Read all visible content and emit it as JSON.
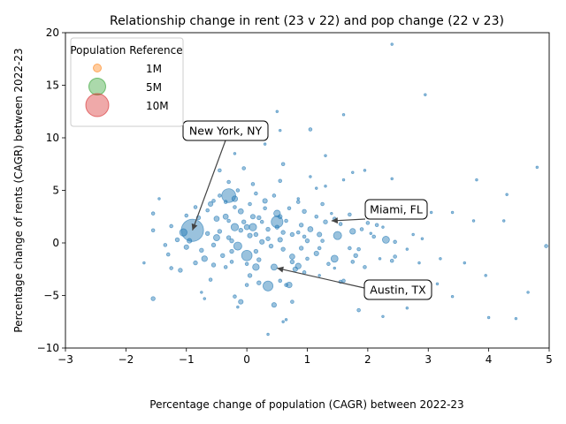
{
  "chart_data": {
    "type": "scatter",
    "title": "Relationship change in rent (23 v 22) and pop change (22 v 23)",
    "xlabel": "Percentage change of population (CAGR) between 2022-23",
    "ylabel": "Percentage change of rents (CAGR) between 2022-23",
    "xlim": [
      -3,
      5
    ],
    "ylim": [
      -10,
      20
    ],
    "xticks": [
      "-3",
      "-2",
      "-1",
      "0",
      "1",
      "2",
      "3",
      "4",
      "5"
    ],
    "yticks": [
      "-10",
      "-5",
      "0",
      "5",
      "10",
      "15",
      "20"
    ],
    "grid": false,
    "point_color": "#1f77b4",
    "legend": {
      "title": "Population Reference",
      "placement": "top-left",
      "entries": [
        {
          "label": "1M",
          "population_m": 1,
          "color": "#ff7f0e"
        },
        {
          "label": "5M",
          "population_m": 5,
          "color": "#2ca02c"
        },
        {
          "label": "10M",
          "population_m": 10,
          "color": "#d62728"
        }
      ]
    },
    "annotations": [
      {
        "label": "New York, NY",
        "x": -0.9,
        "y": 1.2
      },
      {
        "label": "Miami, FL",
        "x": 1.4,
        "y": 2.1
      },
      {
        "label": "Austin, TX",
        "x": 0.5,
        "y": -2.4
      }
    ],
    "series": [
      {
        "points": [
          [
            -0.9,
            1.2,
            9.0
          ],
          [
            -0.3,
            4.5,
            3.5
          ],
          [
            0.35,
            -4.1,
            1.8
          ],
          [
            0.5,
            2.0,
            2.5
          ],
          [
            0.0,
            -1.2,
            2.0
          ],
          [
            -0.15,
            -0.3,
            1.2
          ],
          [
            1.5,
            0.7,
            1.2
          ],
          [
            2.3,
            0.3,
            0.9
          ],
          [
            1.45,
            -1.5,
            0.9
          ],
          [
            -1.05,
            1.0,
            1.0
          ],
          [
            -0.2,
            1.5,
            1.0
          ],
          [
            0.1,
            1.5,
            1.0
          ],
          [
            0.5,
            2.8,
            0.8
          ],
          [
            0.15,
            -2.3,
            0.8
          ],
          [
            0.7,
            -4.0,
            0.6
          ],
          [
            -0.5,
            0.5,
            0.7
          ],
          [
            -0.7,
            -1.5,
            0.6
          ],
          [
            0.85,
            -2.2,
            0.6
          ],
          [
            0.45,
            -2.3,
            0.7
          ],
          [
            -0.2,
            4.2,
            0.6
          ],
          [
            1.75,
            1.1,
            0.6
          ],
          [
            -0.6,
            3.7,
            0.4
          ],
          [
            0.0,
            1.5,
            0.5
          ],
          [
            -0.35,
            2.5,
            0.5
          ],
          [
            0.3,
            4.0,
            0.4
          ],
          [
            0.45,
            -5.9,
            0.4
          ],
          [
            -0.1,
            -5.6,
            0.4
          ],
          [
            0.8,
            -2.5,
            0.4
          ],
          [
            0.75,
            -1.3,
            0.5
          ],
          [
            1.05,
            1.3,
            0.5
          ],
          [
            -1.55,
            -5.3,
            0.3
          ],
          [
            -0.6,
            -3.5,
            0.2
          ],
          [
            -0.5,
            2.3,
            0.5
          ],
          [
            -0.1,
            3.0,
            0.5
          ],
          [
            0.1,
            2.5,
            0.4
          ],
          [
            0.55,
            0.3,
            0.4
          ],
          [
            1.15,
            -1.0,
            0.4
          ],
          [
            0.95,
            3.0,
            0.3
          ],
          [
            1.2,
            0.8,
            0.4
          ],
          [
            1.3,
            2.0,
            0.3
          ],
          [
            -0.8,
            2.4,
            0.3
          ],
          [
            -0.45,
            1.1,
            0.3
          ],
          [
            -0.25,
            -0.8,
            0.3
          ],
          [
            0.2,
            -1.6,
            0.3
          ],
          [
            0.6,
            -0.6,
            0.3
          ],
          [
            1.0,
            0.2,
            0.3
          ],
          [
            1.8,
            -1.2,
            0.3
          ],
          [
            1.85,
            -6.4,
            0.2
          ],
          [
            2.4,
            -1.7,
            0.2
          ],
          [
            2.0,
            1.9,
            0.2
          ],
          [
            2.25,
            -7.0,
            0.1
          ],
          [
            2.65,
            -6.2,
            0.1
          ],
          [
            1.55,
            -3.7,
            0.2
          ],
          [
            1.95,
            -2.3,
            0.2
          ],
          [
            2.1,
            -4.7,
            0.1
          ],
          [
            0.6,
            7.5,
            0.2
          ],
          [
            0.55,
            5.9,
            0.2
          ],
          [
            1.05,
            10.8,
            0.2
          ],
          [
            2.95,
            14.1,
            0.1
          ],
          [
            2.4,
            18.9,
            0.1
          ],
          [
            1.3,
            8.3,
            0.1
          ],
          [
            2.4,
            6.1,
            0.1
          ],
          [
            1.05,
            6.3,
            0.1
          ],
          [
            1.75,
            6.7,
            0.1
          ],
          [
            1.95,
            6.9,
            0.1
          ],
          [
            1.3,
            5.4,
            0.1
          ],
          [
            0.5,
            12.5,
            0.1
          ],
          [
            0.55,
            10.7,
            0.1
          ],
          [
            0.3,
            9.4,
            0.1
          ],
          [
            -0.2,
            8.5,
            0.1
          ],
          [
            -0.05,
            7.1,
            0.2
          ],
          [
            -0.45,
            6.9,
            0.2
          ],
          [
            -0.3,
            5.8,
            0.2
          ],
          [
            0.1,
            5.6,
            0.2
          ],
          [
            -1.45,
            4.2,
            0.1
          ],
          [
            -1.55,
            2.8,
            0.2
          ],
          [
            -1.55,
            1.2,
            0.2
          ],
          [
            -1.35,
            -0.2,
            0.2
          ],
          [
            -1.25,
            1.6,
            0.2
          ],
          [
            -1.15,
            0.3,
            0.3
          ],
          [
            -1.0,
            -0.4,
            0.4
          ],
          [
            -1.1,
            -2.6,
            0.3
          ],
          [
            -0.85,
            -1.9,
            0.3
          ],
          [
            -1.25,
            -2.4,
            0.2
          ],
          [
            -1.7,
            -1.9,
            0.1
          ],
          [
            -0.75,
            -4.7,
            0.1
          ],
          [
            -0.7,
            -5.3,
            0.1
          ],
          [
            -0.2,
            -5.1,
            0.2
          ],
          [
            -0.15,
            -6.1,
            0.1
          ],
          [
            0.35,
            -8.7,
            0.1
          ],
          [
            0.65,
            -7.3,
            0.1
          ],
          [
            0.6,
            -7.5,
            0.1
          ],
          [
            0.75,
            -5.6,
            0.2
          ],
          [
            0.65,
            -4.0,
            0.2
          ],
          [
            0.95,
            -2.8,
            0.2
          ],
          [
            1.2,
            -3.1,
            0.1
          ],
          [
            1.6,
            -3.6,
            0.2
          ],
          [
            1.45,
            -2.4,
            0.1
          ],
          [
            0.75,
            0.8,
            0.3
          ],
          [
            0.9,
            1.7,
            0.3
          ],
          [
            0.25,
            0.1,
            0.4
          ],
          [
            0.05,
            0.7,
            0.4
          ],
          [
            -0.05,
            2.0,
            0.3
          ],
          [
            -0.3,
            0.5,
            0.3
          ],
          [
            0.35,
            1.3,
            0.3
          ],
          [
            0.4,
            -0.3,
            0.3
          ],
          [
            0.15,
            -0.8,
            0.3
          ],
          [
            -0.4,
            -1.2,
            0.3
          ],
          [
            -0.55,
            -0.2,
            0.3
          ],
          [
            0.65,
            2.1,
            0.2
          ],
          [
            0.85,
            1.0,
            0.2
          ],
          [
            1.15,
            2.5,
            0.2
          ],
          [
            1.55,
            1.8,
            0.2
          ],
          [
            1.7,
            2.7,
            0.2
          ],
          [
            1.85,
            -0.6,
            0.2
          ],
          [
            2.05,
            0.9,
            0.1
          ],
          [
            2.15,
            1.7,
            0.2
          ],
          [
            2.45,
            -1.3,
            0.2
          ],
          [
            2.75,
            0.8,
            0.1
          ],
          [
            2.9,
            0.4,
            0.1
          ],
          [
            2.85,
            -1.9,
            0.1
          ],
          [
            3.05,
            2.9,
            0.1
          ],
          [
            3.15,
            -3.9,
            0.1
          ],
          [
            3.2,
            -1.5,
            0.1
          ],
          [
            3.6,
            -1.9,
            0.1
          ],
          [
            3.75,
            2.1,
            0.1
          ],
          [
            3.4,
            2.9,
            0.1
          ],
          [
            3.95,
            -3.1,
            0.1
          ],
          [
            4.0,
            -7.1,
            0.1
          ],
          [
            4.25,
            2.1,
            0.1
          ],
          [
            4.3,
            4.6,
            0.1
          ],
          [
            4.45,
            -7.2,
            0.1
          ],
          [
            4.65,
            -4.7,
            0.1
          ],
          [
            4.8,
            7.2,
            0.1
          ],
          [
            4.95,
            -0.3,
            0.2
          ],
          [
            3.8,
            6.0,
            0.1
          ],
          [
            3.4,
            -5.1,
            0.1
          ],
          [
            1.6,
            6.0,
            0.1
          ],
          [
            1.6,
            12.2,
            0.1
          ],
          [
            1.15,
            5.2,
            0.1
          ],
          [
            0.7,
            3.3,
            0.2
          ],
          [
            0.85,
            4.2,
            0.1
          ],
          [
            1.25,
            3.7,
            0.2
          ],
          [
            1.4,
            2.8,
            0.1
          ],
          [
            0.3,
            3.3,
            0.2
          ],
          [
            -0.2,
            3.4,
            0.2
          ],
          [
            -0.65,
            3.1,
            0.2
          ],
          [
            -0.85,
            3.4,
            0.2
          ],
          [
            -1.0,
            2.6,
            0.2
          ],
          [
            -0.95,
            0.2,
            0.4
          ],
          [
            -0.55,
            -2.1,
            0.3
          ],
          [
            -0.35,
            -2.3,
            0.2
          ],
          [
            0.05,
            -3.1,
            0.3
          ],
          [
            0.2,
            -3.8,
            0.3
          ],
          [
            0.55,
            -3.6,
            0.2
          ],
          [
            0.75,
            -1.8,
            0.3
          ],
          [
            1.0,
            -1.5,
            0.2
          ],
          [
            1.2,
            -0.5,
            0.2
          ],
          [
            0.9,
            -0.5,
            0.3
          ],
          [
            0.6,
            1.0,
            0.3
          ],
          [
            0.25,
            2.0,
            0.2
          ],
          [
            0.05,
            3.7,
            0.2
          ],
          [
            -0.45,
            4.5,
            0.2
          ],
          [
            0.15,
            4.7,
            0.2
          ],
          [
            0.45,
            4.5,
            0.2
          ],
          [
            1.7,
            -0.5,
            0.2
          ],
          [
            1.35,
            -2.0,
            0.2
          ],
          [
            2.2,
            -1.5,
            0.1
          ],
          [
            1.75,
            -1.8,
            0.2
          ],
          [
            2.25,
            1.5,
            0.1
          ],
          [
            2.65,
            -0.6,
            0.1
          ],
          [
            -0.65,
            0.9,
            0.3
          ],
          [
            -0.75,
            -0.7,
            0.3
          ],
          [
            -1.3,
            -1.1,
            0.2
          ],
          [
            -0.25,
            -1.8,
            0.2
          ],
          [
            0.0,
            -2.0,
            0.2
          ],
          [
            0.35,
            0.4,
            0.3
          ],
          [
            0.55,
            2.5,
            0.3
          ],
          [
            0.95,
            0.6,
            0.2
          ],
          [
            1.25,
            0.2,
            0.2
          ],
          [
            -0.1,
            1.2,
            0.3
          ],
          [
            0.2,
            2.4,
            0.3
          ],
          [
            -0.3,
            2.1,
            0.2
          ],
          [
            -0.15,
            5.0,
            0.2
          ],
          [
            0.0,
            -4.0,
            0.2
          ],
          [
            -0.35,
            3.9,
            0.2
          ],
          [
            -0.55,
            4.0,
            0.2
          ],
          [
            0.5,
            1.5,
            0.3
          ],
          [
            0.15,
            0.8,
            0.3
          ],
          [
            -0.25,
            0.2,
            0.3
          ],
          [
            1.45,
            2.3,
            0.2
          ],
          [
            1.9,
            1.3,
            0.2
          ],
          [
            2.45,
            0.1,
            0.2
          ],
          [
            2.1,
            0.6,
            0.2
          ],
          [
            0.85,
            3.9,
            0.2
          ]
        ]
      }
    ]
  }
}
